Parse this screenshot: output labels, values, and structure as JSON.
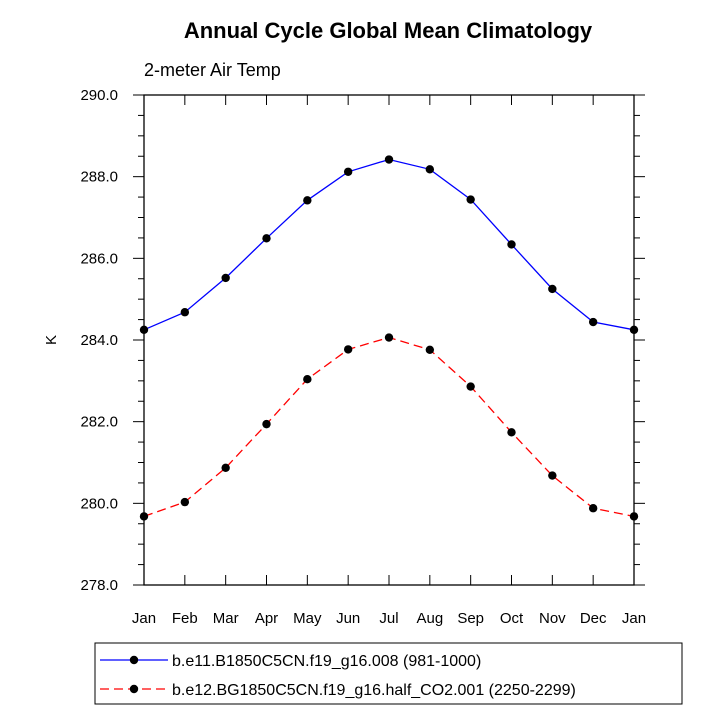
{
  "chart_data": {
    "type": "line",
    "title": "Annual Cycle Global Mean Climatology",
    "subtitle": "2-meter Air Temp",
    "xlabel": "",
    "ylabel": "K",
    "categories": [
      "Jan",
      "Feb",
      "Mar",
      "Apr",
      "May",
      "Jun",
      "Jul",
      "Aug",
      "Sep",
      "Oct",
      "Nov",
      "Dec",
      "Jan"
    ],
    "ylim": [
      278.0,
      290.0
    ],
    "yticks": [
      "278.0",
      "280.0",
      "282.0",
      "284.0",
      "286.0",
      "288.0",
      "290.0"
    ],
    "grid": false,
    "legend_position": "bottom",
    "series": [
      {
        "name": "b.e11.B1850C5CN.f19_g16.008 (981-1000)",
        "color": "#0000ff",
        "line_style": "solid",
        "marker": "filled-circle",
        "values": [
          284.25,
          284.68,
          285.52,
          286.49,
          287.42,
          288.12,
          288.42,
          288.18,
          287.44,
          286.34,
          285.25,
          284.44,
          284.25
        ]
      },
      {
        "name": "b.e12.BG1850C5CN.f19_g16.half_CO2.001 (2250-2299)",
        "color": "#ff0000",
        "line_style": "dashed",
        "marker": "filled-circle",
        "values": [
          279.68,
          280.03,
          280.87,
          281.94,
          283.04,
          283.77,
          284.06,
          283.76,
          282.86,
          281.74,
          280.68,
          279.88,
          279.68
        ]
      }
    ]
  }
}
